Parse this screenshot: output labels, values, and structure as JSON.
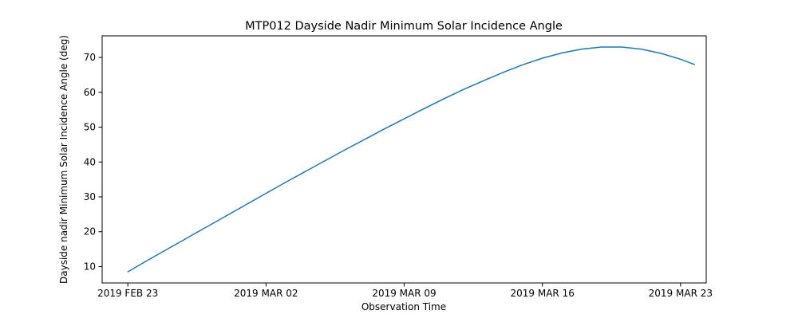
{
  "chart_data": {
    "type": "line",
    "title": "MTP012 Dayside Nadir Minimum Solar Incidence Angle",
    "xlabel": "Observation Time",
    "ylabel": "Dayside nadir Minimum Solar Incidence Angle (deg)",
    "line_color": "#1f77b4",
    "grid": false,
    "legend": null,
    "x_unit": "days since 2019 FEB 23",
    "x": [
      0,
      1,
      2,
      3,
      4,
      5,
      6,
      7,
      8,
      9,
      10,
      11,
      12,
      13,
      14,
      15,
      16,
      17,
      18,
      19,
      20,
      21,
      22,
      23,
      24,
      25,
      26,
      27,
      28,
      28.7
    ],
    "y": [
      8.5,
      11.8,
      15.0,
      18.2,
      21.4,
      24.6,
      27.8,
      31.0,
      34.2,
      37.3,
      40.4,
      43.5,
      46.5,
      49.5,
      52.4,
      55.3,
      58.1,
      60.8,
      63.3,
      65.7,
      67.9,
      69.8,
      71.3,
      72.4,
      73.0,
      73.0,
      72.4,
      71.2,
      69.5,
      68.0
    ],
    "xlim": [
      -1.3,
      29.3
    ],
    "ylim": [
      5.3,
      76.2
    ],
    "x_ticks": [
      {
        "pos": 0,
        "label": "2019 FEB 23"
      },
      {
        "pos": 7,
        "label": "2019 MAR 02"
      },
      {
        "pos": 14,
        "label": "2019 MAR 09"
      },
      {
        "pos": 21,
        "label": "2019 MAR 16"
      },
      {
        "pos": 28,
        "label": "2019 MAR 23"
      }
    ],
    "y_ticks": [
      10,
      20,
      30,
      40,
      50,
      60,
      70
    ]
  }
}
